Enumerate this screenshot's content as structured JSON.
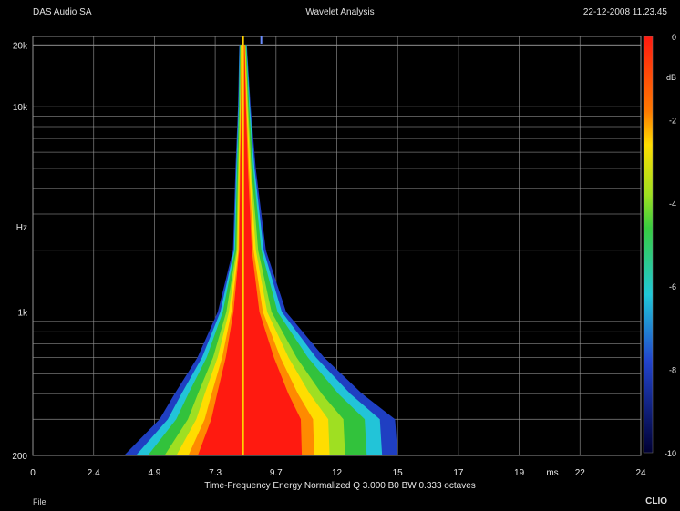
{
  "header": {
    "left": "DAS Audio SA",
    "center": "Wavelet Analysis",
    "right": "22-12-2008 11.23.45"
  },
  "footer": {
    "file_label": "File",
    "brand": "CLIO"
  },
  "chart_data": {
    "type": "heatmap",
    "title": "Wavelet Analysis",
    "caption": "Time-Frequency Energy   Normalized  Q 3.000 B0 BW 0.333 octaves",
    "xlabel": "ms",
    "ylabel": "Hz",
    "xlim": [
      0,
      24
    ],
    "ylim": [
      200,
      22000
    ],
    "y_scale": "log",
    "x_ticks": [
      "0",
      "2.4",
      "4.9",
      "7.3",
      "9.7",
      "12",
      "15",
      "17",
      "19",
      "22",
      "24"
    ],
    "y_ticks": [
      {
        "label": "20k",
        "value": 20000
      },
      {
        "label": "10k",
        "value": 10000
      },
      {
        "label": "Hz",
        "value": 2600
      },
      {
        "label": "1k",
        "value": 1000
      },
      {
        "label": "200",
        "value": 200
      }
    ],
    "colorbar": {
      "unit": "dB",
      "ticks": [
        "0",
        "-2",
        "-4",
        "-6",
        "-8",
        "-10"
      ],
      "range": [
        -10,
        0
      ]
    },
    "grid": true,
    "colors": {
      "0": "#ff1a10",
      "-2": "#ffdd00",
      "-4": "#38cc40",
      "-6": "#20c8d8",
      "-8": "#2244cc",
      "-10": "#000033"
    },
    "ridge_time_ms": 8.3,
    "energy_envelope": [
      {
        "freq_hz": 20000,
        "extent_ms": [
          8.15,
          8.45
        ],
        "peak_db": 0
      },
      {
        "freq_hz": 10000,
        "extent_ms": [
          8.1,
          8.6
        ],
        "peak_db": 0
      },
      {
        "freq_hz": 5000,
        "extent_ms": [
          8.0,
          8.8
        ],
        "peak_db": 0
      },
      {
        "freq_hz": 2000,
        "extent_ms": [
          7.9,
          9.2
        ],
        "peak_db": 0
      },
      {
        "freq_hz": 1000,
        "extent_ms": [
          7.3,
          10.0
        ],
        "peak_db": 0
      },
      {
        "freq_hz": 600,
        "extent_ms": [
          6.5,
          11.5
        ],
        "peak_db": 0
      },
      {
        "freq_hz": 400,
        "extent_ms": [
          5.6,
          13.0
        ],
        "peak_db": 0
      },
      {
        "freq_hz": 300,
        "extent_ms": [
          5.0,
          14.3
        ],
        "peak_db": 0
      },
      {
        "freq_hz": 200,
        "extent_ms": [
          3.6,
          14.4
        ],
        "peak_db": 0
      }
    ]
  }
}
